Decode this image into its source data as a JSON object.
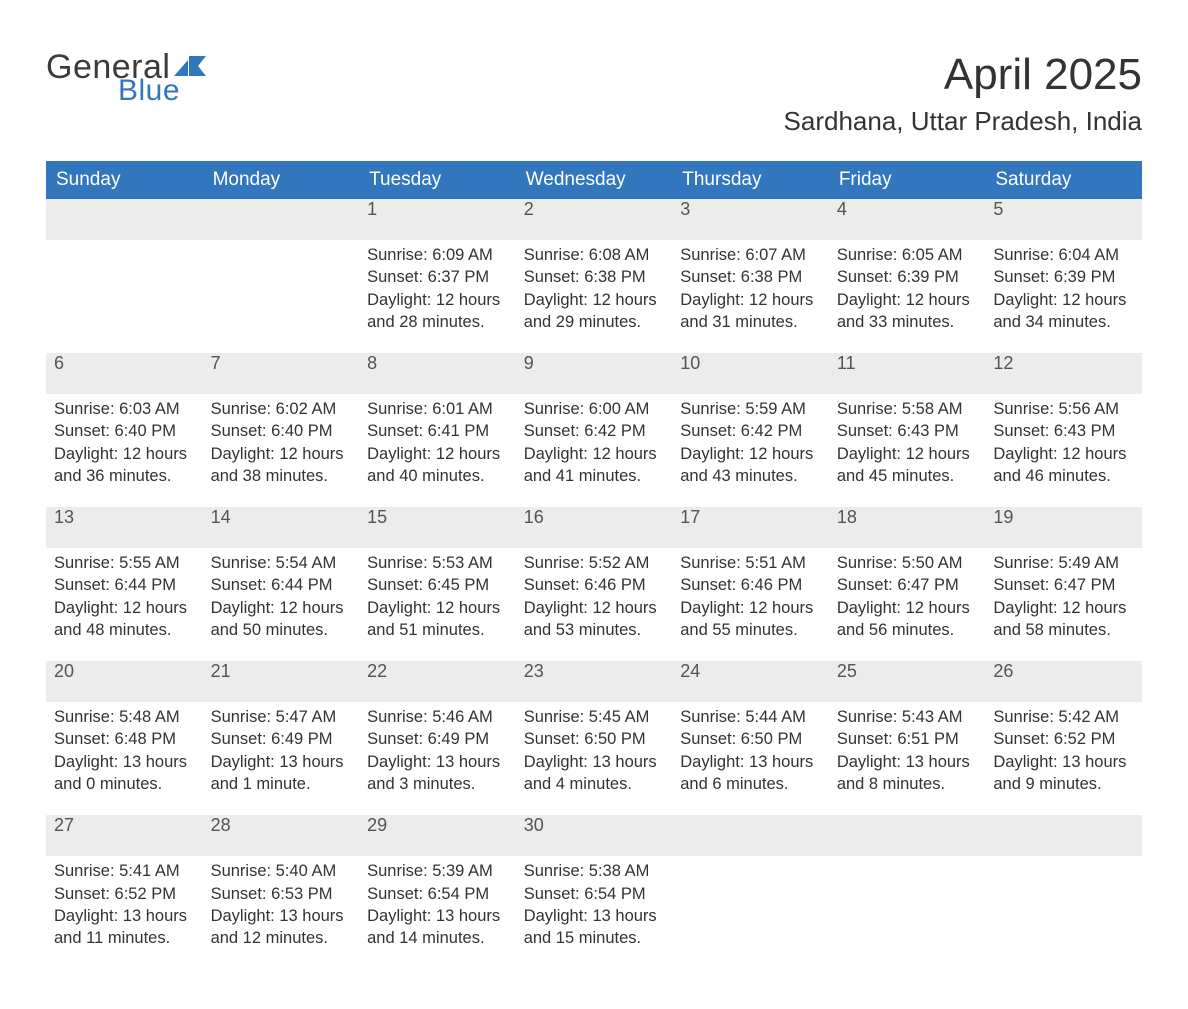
{
  "brand": {
    "word1": "General",
    "word2": "Blue"
  },
  "title": "April 2025",
  "location": "Sardhana, Uttar Pradesh, India",
  "colors": {
    "header_bg": "#3277bd",
    "header_text": "#ffffff",
    "daystrip_bg": "#ececec",
    "daystrip_border": "#3277bd",
    "body_text": "#333333",
    "daynum_text": "#545454",
    "brand_gray": "#3b3b3b",
    "brand_blue": "#3277bd",
    "page_bg": "#ffffff"
  },
  "fonts": {
    "title_size_pt": 33,
    "location_size_pt": 20,
    "header_size_pt": 14,
    "body_size_pt": 12
  },
  "dayNames": [
    "Sunday",
    "Monday",
    "Tuesday",
    "Wednesday",
    "Thursday",
    "Friday",
    "Saturday"
  ],
  "weeks": [
    {
      "nums": [
        "",
        "",
        "1",
        "2",
        "3",
        "4",
        "5"
      ],
      "cells": [
        [],
        [],
        [
          "Sunrise: 6:09 AM",
          "Sunset: 6:37 PM",
          "Daylight: 12 hours",
          "and 28 minutes."
        ],
        [
          "Sunrise: 6:08 AM",
          "Sunset: 6:38 PM",
          "Daylight: 12 hours",
          "and 29 minutes."
        ],
        [
          "Sunrise: 6:07 AM",
          "Sunset: 6:38 PM",
          "Daylight: 12 hours",
          "and 31 minutes."
        ],
        [
          "Sunrise: 6:05 AM",
          "Sunset: 6:39 PM",
          "Daylight: 12 hours",
          "and 33 minutes."
        ],
        [
          "Sunrise: 6:04 AM",
          "Sunset: 6:39 PM",
          "Daylight: 12 hours",
          "and 34 minutes."
        ]
      ]
    },
    {
      "nums": [
        "6",
        "7",
        "8",
        "9",
        "10",
        "11",
        "12"
      ],
      "cells": [
        [
          "Sunrise: 6:03 AM",
          "Sunset: 6:40 PM",
          "Daylight: 12 hours",
          "and 36 minutes."
        ],
        [
          "Sunrise: 6:02 AM",
          "Sunset: 6:40 PM",
          "Daylight: 12 hours",
          "and 38 minutes."
        ],
        [
          "Sunrise: 6:01 AM",
          "Sunset: 6:41 PM",
          "Daylight: 12 hours",
          "and 40 minutes."
        ],
        [
          "Sunrise: 6:00 AM",
          "Sunset: 6:42 PM",
          "Daylight: 12 hours",
          "and 41 minutes."
        ],
        [
          "Sunrise: 5:59 AM",
          "Sunset: 6:42 PM",
          "Daylight: 12 hours",
          "and 43 minutes."
        ],
        [
          "Sunrise: 5:58 AM",
          "Sunset: 6:43 PM",
          "Daylight: 12 hours",
          "and 45 minutes."
        ],
        [
          "Sunrise: 5:56 AM",
          "Sunset: 6:43 PM",
          "Daylight: 12 hours",
          "and 46 minutes."
        ]
      ]
    },
    {
      "nums": [
        "13",
        "14",
        "15",
        "16",
        "17",
        "18",
        "19"
      ],
      "cells": [
        [
          "Sunrise: 5:55 AM",
          "Sunset: 6:44 PM",
          "Daylight: 12 hours",
          "and 48 minutes."
        ],
        [
          "Sunrise: 5:54 AM",
          "Sunset: 6:44 PM",
          "Daylight: 12 hours",
          "and 50 minutes."
        ],
        [
          "Sunrise: 5:53 AM",
          "Sunset: 6:45 PM",
          "Daylight: 12 hours",
          "and 51 minutes."
        ],
        [
          "Sunrise: 5:52 AM",
          "Sunset: 6:46 PM",
          "Daylight: 12 hours",
          "and 53 minutes."
        ],
        [
          "Sunrise: 5:51 AM",
          "Sunset: 6:46 PM",
          "Daylight: 12 hours",
          "and 55 minutes."
        ],
        [
          "Sunrise: 5:50 AM",
          "Sunset: 6:47 PM",
          "Daylight: 12 hours",
          "and 56 minutes."
        ],
        [
          "Sunrise: 5:49 AM",
          "Sunset: 6:47 PM",
          "Daylight: 12 hours",
          "and 58 minutes."
        ]
      ]
    },
    {
      "nums": [
        "20",
        "21",
        "22",
        "23",
        "24",
        "25",
        "26"
      ],
      "cells": [
        [
          "Sunrise: 5:48 AM",
          "Sunset: 6:48 PM",
          "Daylight: 13 hours",
          "and 0 minutes."
        ],
        [
          "Sunrise: 5:47 AM",
          "Sunset: 6:49 PM",
          "Daylight: 13 hours",
          "and 1 minute."
        ],
        [
          "Sunrise: 5:46 AM",
          "Sunset: 6:49 PM",
          "Daylight: 13 hours",
          "and 3 minutes."
        ],
        [
          "Sunrise: 5:45 AM",
          "Sunset: 6:50 PM",
          "Daylight: 13 hours",
          "and 4 minutes."
        ],
        [
          "Sunrise: 5:44 AM",
          "Sunset: 6:50 PM",
          "Daylight: 13 hours",
          "and 6 minutes."
        ],
        [
          "Sunrise: 5:43 AM",
          "Sunset: 6:51 PM",
          "Daylight: 13 hours",
          "and 8 minutes."
        ],
        [
          "Sunrise: 5:42 AM",
          "Sunset: 6:52 PM",
          "Daylight: 13 hours",
          "and 9 minutes."
        ]
      ]
    },
    {
      "nums": [
        "27",
        "28",
        "29",
        "30",
        "",
        "",
        ""
      ],
      "cells": [
        [
          "Sunrise: 5:41 AM",
          "Sunset: 6:52 PM",
          "Daylight: 13 hours",
          "and 11 minutes."
        ],
        [
          "Sunrise: 5:40 AM",
          "Sunset: 6:53 PM",
          "Daylight: 13 hours",
          "and 12 minutes."
        ],
        [
          "Sunrise: 5:39 AM",
          "Sunset: 6:54 PM",
          "Daylight: 13 hours",
          "and 14 minutes."
        ],
        [
          "Sunrise: 5:38 AM",
          "Sunset: 6:54 PM",
          "Daylight: 13 hours",
          "and 15 minutes."
        ],
        [],
        [],
        []
      ]
    }
  ]
}
